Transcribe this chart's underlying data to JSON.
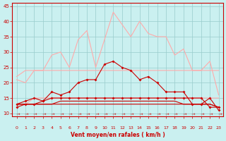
{
  "x": [
    0,
    1,
    2,
    3,
    4,
    5,
    6,
    7,
    8,
    9,
    10,
    11,
    12,
    13,
    14,
    15,
    16,
    17,
    18,
    19,
    20,
    21,
    22,
    23
  ],
  "series": [
    {
      "name": "rafales_light1",
      "color": "#ffaaaa",
      "linewidth": 0.8,
      "marker": null,
      "markersize": 0,
      "zorder": 2,
      "y": [
        21,
        20,
        24,
        24,
        29,
        30,
        25,
        34,
        37,
        25,
        34,
        43,
        39,
        35,
        40,
        36,
        35,
        35,
        29,
        31,
        24,
        24,
        27,
        16
      ]
    },
    {
      "name": "rafales_light2",
      "color": "#ffaaaa",
      "linewidth": 0.8,
      "marker": null,
      "markersize": 0,
      "zorder": 2,
      "y": [
        22,
        24,
        24,
        24,
        24,
        24,
        24,
        24,
        24,
        24,
        24,
        24,
        24,
        24,
        24,
        24,
        24,
        24,
        24,
        24,
        24,
        24,
        24,
        24
      ]
    },
    {
      "name": "vent_moyen_light",
      "color": "#ffaaaa",
      "linewidth": 0.8,
      "marker": null,
      "markersize": 0,
      "zorder": 2,
      "y": [
        13,
        13,
        15,
        15,
        15,
        15,
        15,
        15,
        15,
        15,
        15,
        15,
        15,
        15,
        15,
        15,
        15,
        15,
        15,
        15,
        15,
        15,
        15,
        15
      ]
    },
    {
      "name": "rafales_dark",
      "color": "#cc0000",
      "linewidth": 0.8,
      "marker": "D",
      "markersize": 2.0,
      "zorder": 4,
      "y": [
        13,
        14,
        15,
        14,
        17,
        16,
        17,
        20,
        21,
        21,
        26,
        27,
        25,
        24,
        21,
        22,
        20,
        17,
        17,
        17,
        13,
        13,
        15,
        11
      ]
    },
    {
      "name": "vent_moyen_dark",
      "color": "#cc0000",
      "linewidth": 0.8,
      "marker": "D",
      "markersize": 2.0,
      "zorder": 4,
      "y": [
        12,
        13,
        13,
        14,
        15,
        15,
        15,
        15,
        15,
        15,
        15,
        15,
        15,
        15,
        15,
        15,
        15,
        15,
        15,
        15,
        15,
        15,
        12,
        12
      ]
    },
    {
      "name": "flat_dark1",
      "color": "#cc0000",
      "linewidth": 0.8,
      "marker": null,
      "markersize": 0,
      "zorder": 3,
      "y": [
        13,
        13,
        13,
        13,
        13,
        13,
        13,
        13,
        13,
        13,
        13,
        13,
        13,
        13,
        13,
        13,
        13,
        13,
        13,
        13,
        13,
        13,
        13,
        12
      ]
    },
    {
      "name": "flat_dark2",
      "color": "#cc0000",
      "linewidth": 0.8,
      "marker": null,
      "markersize": 0,
      "zorder": 3,
      "y": [
        13,
        13,
        13,
        13,
        13,
        14,
        14,
        14,
        14,
        14,
        14,
        14,
        14,
        14,
        14,
        14,
        14,
        14,
        14,
        13,
        13,
        13,
        13,
        12
      ]
    }
  ],
  "xlim": [
    -0.5,
    23.5
  ],
  "ylim": [
    9,
    46
  ],
  "yticks": [
    10,
    15,
    20,
    25,
    30,
    35,
    40,
    45
  ],
  "xticks": [
    0,
    1,
    2,
    3,
    4,
    5,
    6,
    7,
    8,
    9,
    10,
    11,
    12,
    13,
    14,
    15,
    16,
    17,
    18,
    19,
    20,
    21,
    22,
    23
  ],
  "xlabel": "Vent moyen/en rafales ( km/h )",
  "bg_color": "#caf0f0",
  "grid_color": "#99cccc",
  "axis_color": "#cc0000",
  "label_color": "#cc0000",
  "tick_color": "#cc0000"
}
